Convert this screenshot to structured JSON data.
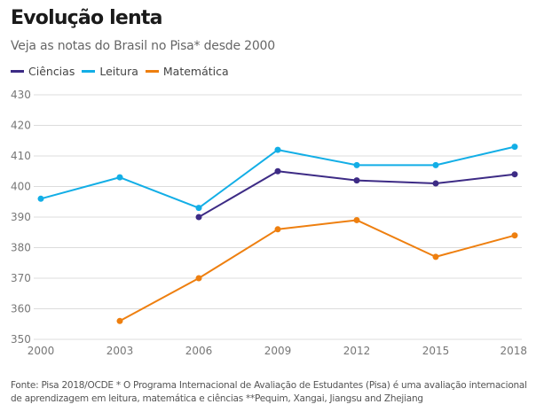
{
  "chart_data": {
    "type": "line",
    "title": "Evolução lenta",
    "subtitle": "Veja as notas do Brasil no Pisa* desde 2000",
    "xlabel": "",
    "ylabel": "",
    "x": [
      2000,
      2003,
      2006,
      2009,
      2012,
      2015,
      2018
    ],
    "x_tick_labels": [
      "2000",
      "2003",
      "2006",
      "2009",
      "2012",
      "2015",
      "2018"
    ],
    "y_ticks": [
      350,
      360,
      370,
      380,
      390,
      400,
      410,
      420,
      430
    ],
    "y_tick_labels": [
      "350",
      "360",
      "370",
      "380",
      "390",
      "400",
      "410",
      "420",
      "430"
    ],
    "ylim": [
      350,
      430
    ],
    "grid": true,
    "legend_position": "top-left",
    "series": [
      {
        "name": "Ciências",
        "color": "#3d2b85",
        "values": [
          null,
          null,
          390,
          405,
          402,
          401,
          404
        ]
      },
      {
        "name": "Leitura",
        "color": "#12aee6",
        "values": [
          396,
          403,
          393,
          412,
          407,
          407,
          413
        ]
      },
      {
        "name": "Matemática",
        "color": "#ee7f0f",
        "values": [
          null,
          356,
          370,
          386,
          389,
          377,
          384
        ]
      }
    ],
    "footnote": "Fonte: Pisa 2018/OCDE * O Programa Internacional de Avaliação de Estudantes (Pisa) é uma avaliação internacional de aprendizagem em leitura, matemática e ciências **Pequim, Xangai, Jiangsu and Zhejiang"
  }
}
